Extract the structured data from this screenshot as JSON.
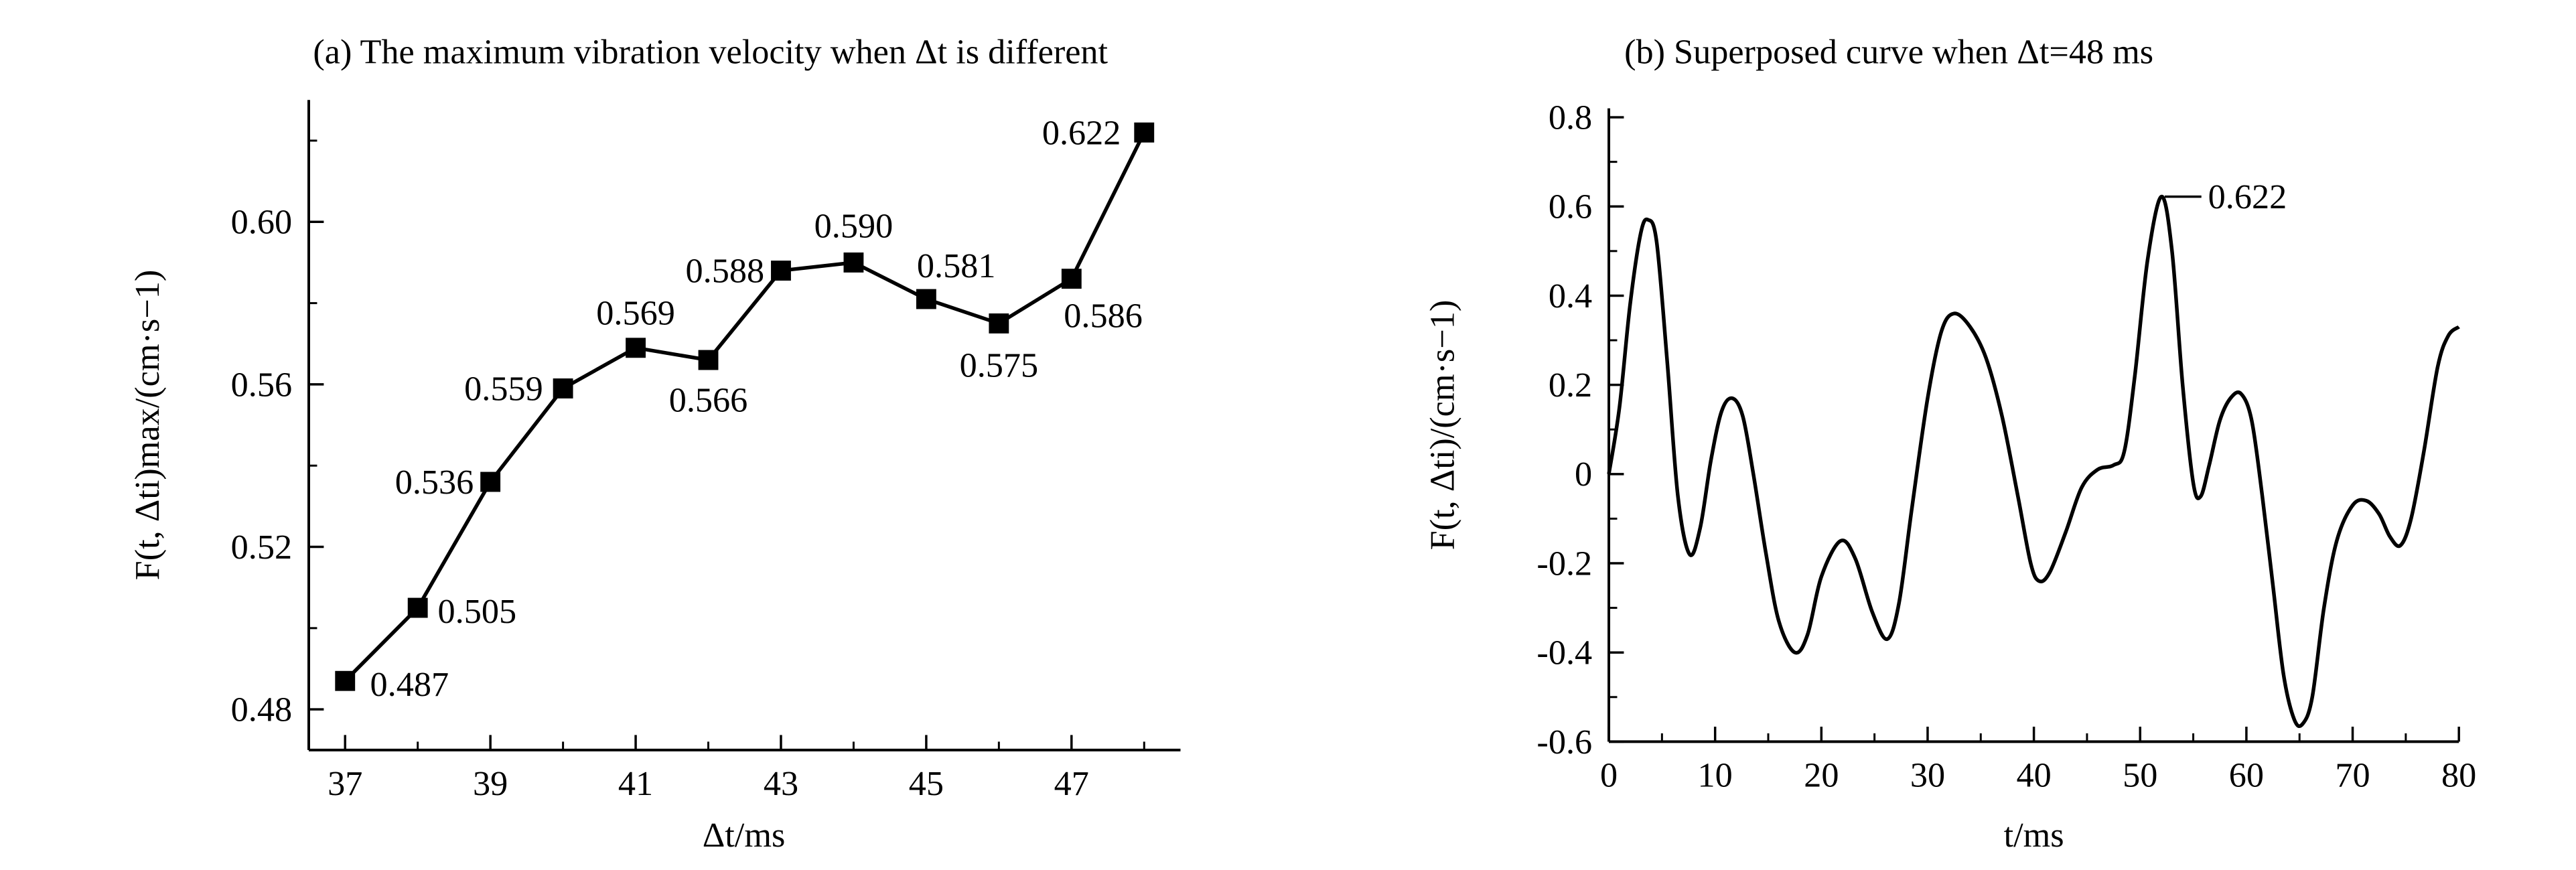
{
  "chart_data": [
    {
      "type": "line",
      "title": "(a) The maximum vibration velocity when Δt is different",
      "x_label": "Δt/ms",
      "y_label": "F(t, Δti)max/(cm·s−1)",
      "x": [
        37,
        38,
        39,
        40,
        41,
        42,
        43,
        44,
        45,
        46,
        47,
        48
      ],
      "series": [
        {
          "color": "#000000",
          "marker": "square",
          "values": [
            0.487,
            0.505,
            0.536,
            0.559,
            0.569,
            0.566,
            0.588,
            0.59,
            0.581,
            0.575,
            0.586,
            0.622
          ],
          "value_labels": [
            "0.487",
            "0.505",
            "0.536",
            "0.559",
            "0.569",
            "0.566",
            "0.588",
            "0.590",
            "0.581",
            "0.575",
            "0.586",
            "0.622"
          ]
        }
      ],
      "xlim": [
        36.5,
        48.5
      ],
      "xticks": [
        37,
        39,
        41,
        43,
        45,
        47
      ],
      "ylim": [
        0.47,
        0.63
      ],
      "yticks": [
        0.48,
        0.52,
        0.56,
        {
          "value": 0.6,
          "label": "0.60"
        }
      ]
    },
    {
      "type": "line",
      "title": "(b) Superposed curve when  Δt=48 ms",
      "x_label": "t/ms",
      "y_label": "F(t, Δti)/(cm·s−1)",
      "x": [
        0,
        1,
        2,
        3,
        3.7,
        4.5,
        5.5,
        6.5,
        7.6,
        8.6,
        9.6,
        10.6,
        11.6,
        12.6,
        13.6,
        14.8,
        16,
        17.5,
        18.7,
        20,
        21.8,
        23.2,
        24.8,
        26.2,
        27.3,
        28.5,
        30,
        31.3,
        32.5,
        34,
        35.5,
        37,
        38.5,
        39.7,
        40.5,
        41.5,
        43,
        44.5,
        46,
        47.5,
        48.5,
        49.5,
        50.7,
        52,
        53,
        54,
        55,
        55.7,
        56.5,
        57.5,
        58.5,
        59.5,
        60.5,
        61.5,
        62.5,
        63.5,
        64.5,
        65.3,
        66.2,
        67.3,
        68.5,
        70,
        71.3,
        72.5,
        73.5,
        74.5,
        75.5,
        76.7,
        78,
        79,
        80
      ],
      "series": [
        {
          "color": "#000000",
          "values": [
            0,
            0.15,
            0.38,
            0.54,
            0.57,
            0.52,
            0.25,
            -0.05,
            -0.18,
            -0.12,
            0.03,
            0.14,
            0.17,
            0.13,
            0.0,
            -0.18,
            -0.33,
            -0.4,
            -0.36,
            -0.23,
            -0.15,
            -0.19,
            -0.31,
            -0.37,
            -0.29,
            -0.08,
            0.17,
            0.32,
            0.36,
            0.33,
            0.26,
            0.13,
            -0.05,
            -0.2,
            -0.24,
            -0.22,
            -0.13,
            -0.03,
            0.01,
            0.02,
            0.05,
            0.22,
            0.48,
            0.622,
            0.5,
            0.2,
            -0.02,
            -0.05,
            0.02,
            0.12,
            0.17,
            0.18,
            0.12,
            -0.05,
            -0.25,
            -0.45,
            -0.55,
            -0.56,
            -0.5,
            -0.3,
            -0.15,
            -0.07,
            -0.06,
            -0.09,
            -0.14,
            -0.16,
            -0.1,
            0.05,
            0.24,
            0.31,
            0.33
          ]
        }
      ],
      "annotations": [
        {
          "text": "0.622",
          "x": 52,
          "y": 0.622
        }
      ],
      "xlim": [
        0,
        80
      ],
      "xticks": [
        0,
        10,
        20,
        30,
        40,
        50,
        60,
        70,
        80
      ],
      "ylim": [
        -0.6,
        0.82
      ],
      "yticks": [
        -0.6,
        -0.4,
        -0.2,
        0,
        0.2,
        0.4,
        0.6,
        0.8
      ]
    }
  ]
}
